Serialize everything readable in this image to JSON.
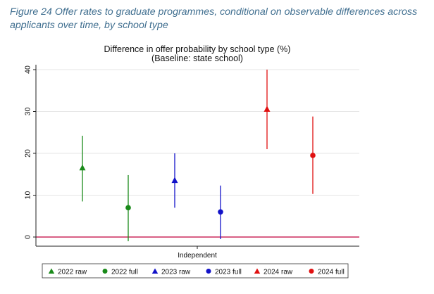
{
  "caption": {
    "line1": "Figure 24 Offer rates to graduate programmes, conditional on observable differences across",
    "line2": "applicants over time, by school type"
  },
  "chart_data": {
    "type": "scatter",
    "title": "Difference in offer probability by school type (%)",
    "subtitle": "(Baseline: state school)",
    "xlabel": "",
    "ylabel": "",
    "categories": [
      "Independent"
    ],
    "ylim": [
      -2,
      41
    ],
    "yticks": [
      0,
      10,
      20,
      30,
      40
    ],
    "grid": true,
    "baseline": {
      "value": 0,
      "color": "#c0003c"
    },
    "legend_position": "bottom",
    "series": [
      {
        "name": "2022 raw",
        "marker": "triangle",
        "color": "#1a8a1a",
        "value": 16.5,
        "ci": [
          8.5,
          24.2
        ]
      },
      {
        "name": "2022 full",
        "marker": "circle",
        "color": "#1a8a1a",
        "value": 7.0,
        "ci": [
          -1.0,
          14.8
        ]
      },
      {
        "name": "2023 raw",
        "marker": "triangle",
        "color": "#1212c8",
        "value": 13.5,
        "ci": [
          7.0,
          20.0
        ]
      },
      {
        "name": "2023 full",
        "marker": "circle",
        "color": "#1212c8",
        "value": 6.0,
        "ci": [
          -0.5,
          12.3
        ]
      },
      {
        "name": "2024 raw",
        "marker": "triangle",
        "color": "#e01010",
        "value": 30.5,
        "ci": [
          21.0,
          40.0
        ]
      },
      {
        "name": "2024 full",
        "marker": "circle",
        "color": "#e01010",
        "value": 19.5,
        "ci": [
          10.3,
          28.8
        ]
      }
    ]
  }
}
